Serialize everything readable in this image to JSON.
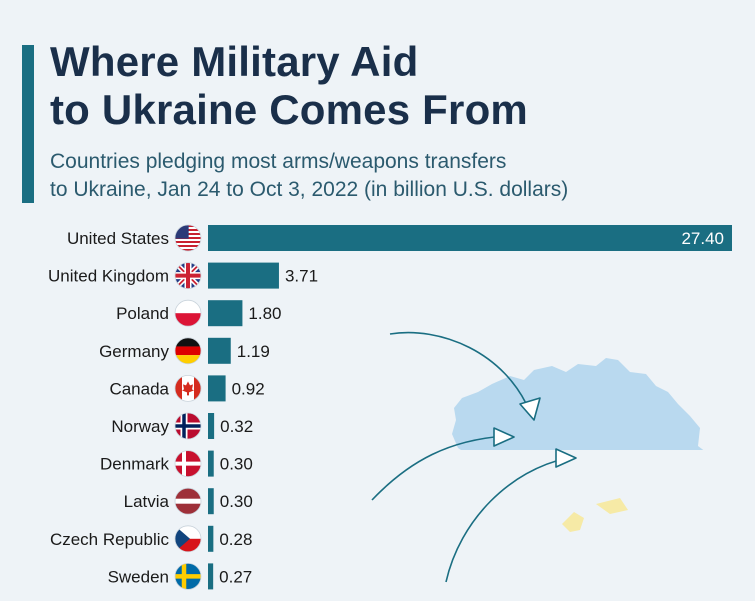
{
  "header": {
    "title_line1": "Where Military Aid",
    "title_line2": "to Ukraine Comes From",
    "subtitle_line1": "Countries pledging most arms/weapons transfers",
    "subtitle_line2": "to Ukraine, Jan 24 to Oct 3, 2022 (in billion U.S. dollars)"
  },
  "colors": {
    "bar": "#1a6e82",
    "title": "#1a2f4a",
    "subtitle": "#2b5a6e",
    "map_blue": "#b9d9ef",
    "map_yellow": "#f6eaa6",
    "arrow": "#1a6e82"
  },
  "chart_data": {
    "type": "bar",
    "orientation": "horizontal",
    "title": "Where Military Aid to Ukraine Comes From",
    "subtitle": "Countries pledging most arms/weapons transfers to Ukraine, Jan 24 to Oct 3, 2022 (in billion U.S. dollars)",
    "xlabel": "",
    "ylabel": "",
    "xlim": [
      0,
      27.4
    ],
    "grid": false,
    "legend": "none",
    "categories": [
      "United States",
      "United Kingdom",
      "Poland",
      "Germany",
      "Canada",
      "Norway",
      "Denmark",
      "Latvia",
      "Czech Republic",
      "Sweden"
    ],
    "values": [
      27.4,
      3.71,
      1.8,
      1.19,
      0.92,
      0.32,
      0.3,
      0.3,
      0.28,
      0.27
    ],
    "value_labels": [
      "27.40",
      "3.71",
      "1.80",
      "1.19",
      "0.92",
      "0.32",
      "0.30",
      "0.30",
      "0.28",
      "0.27"
    ],
    "flags": [
      "us-flag-icon",
      "uk-flag-icon",
      "poland-flag-icon",
      "germany-flag-icon",
      "canada-flag-icon",
      "norway-flag-icon",
      "denmark-flag-icon",
      "latvia-flag-icon",
      "czech-flag-icon",
      "sweden-flag-icon"
    ]
  }
}
